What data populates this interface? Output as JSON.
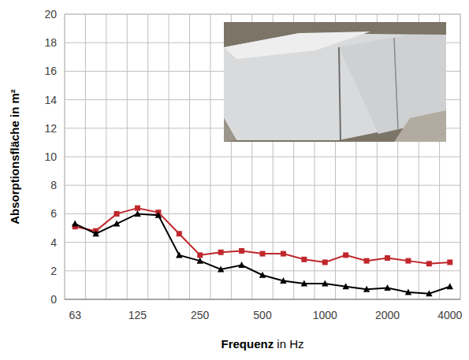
{
  "chart_data": {
    "type": "line",
    "x_label": "Frequenz in Hz",
    "y_label": "Absorptionsfläche in m²",
    "categories": [
      "63",
      null,
      null,
      "125",
      null,
      null,
      "250",
      null,
      null,
      "500",
      null,
      null,
      "1000",
      null,
      null,
      "2000",
      null,
      null,
      "4000"
    ],
    "series": [
      {
        "color": "#c0282d",
        "marker": "square",
        "line_style": "solid",
        "values": [
          5.1,
          4.8,
          6.0,
          6.4,
          6.1,
          4.6,
          3.1,
          3.3,
          3.4,
          3.2,
          3.2,
          2.8,
          2.6,
          3.1,
          2.7,
          2.9,
          2.7,
          2.5,
          2.6
        ]
      },
      {
        "color": "#000000",
        "marker": "triangle",
        "line_style": "solid",
        "values": [
          5.3,
          4.6,
          5.3,
          6.0,
          5.9,
          3.1,
          2.7,
          2.1,
          2.4,
          1.7,
          1.3,
          1.1,
          1.1,
          0.9,
          0.7,
          0.8,
          0.5,
          0.4,
          0.9
        ]
      }
    ],
    "ylim": [
      0,
      20
    ],
    "yticks": [
      0,
      2,
      4,
      6,
      8,
      10,
      12,
      14,
      16,
      18,
      20
    ],
    "grid": true
  }
}
